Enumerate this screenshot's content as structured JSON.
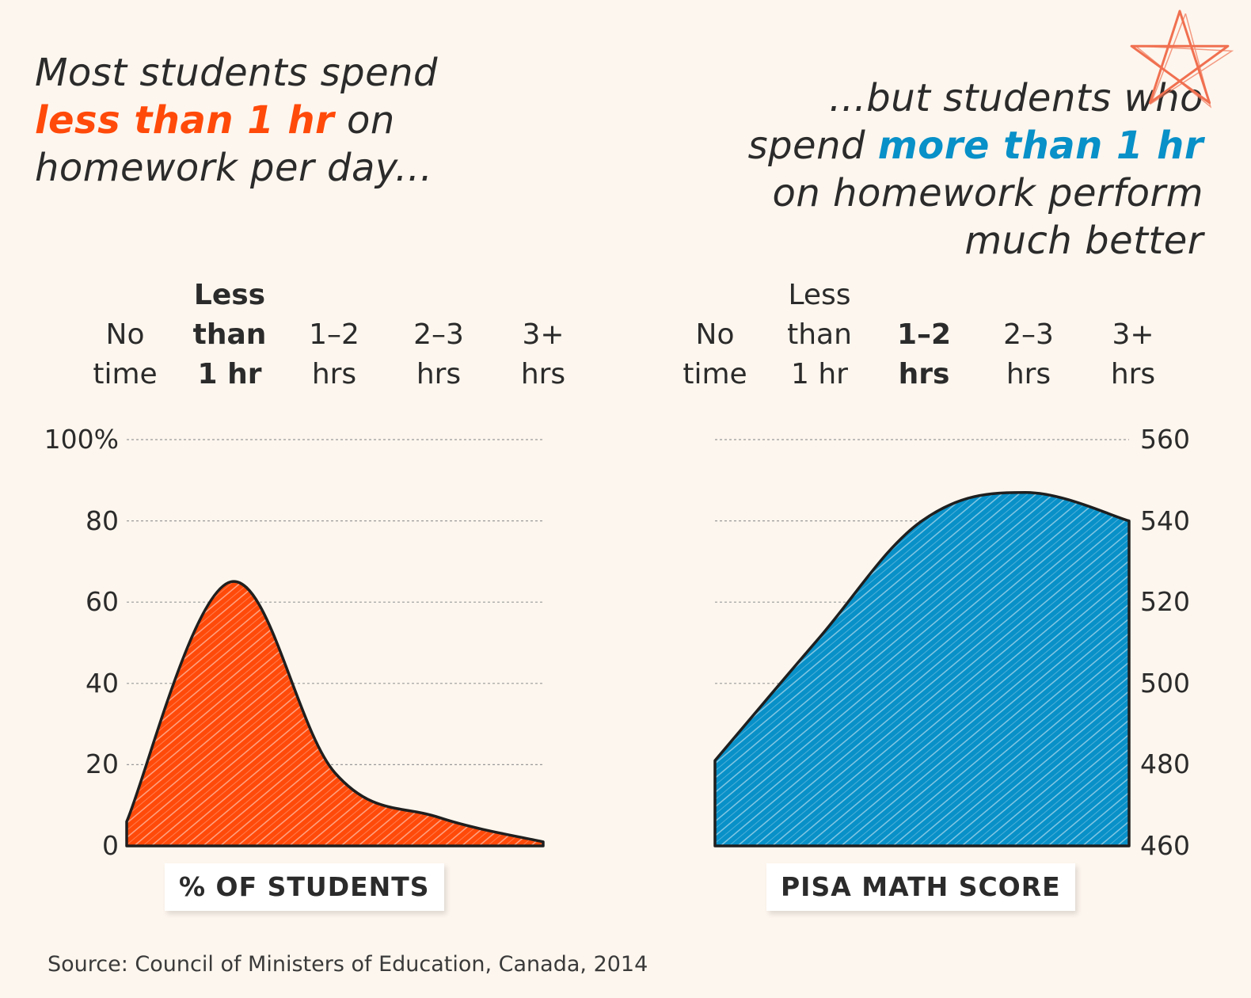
{
  "heading_left": {
    "line1": "Most students spend",
    "line2_highlight": "less than 1 hr",
    "line2_rest": " on",
    "line3": "homework per day..."
  },
  "heading_right": {
    "line1": "...but students who",
    "line2_start": "spend ",
    "line2_highlight": "more than 1 hr",
    "line3": "on homework perform",
    "line4": "much better"
  },
  "colors": {
    "left_fill": "#ff4a0a",
    "right_fill": "#0890c8",
    "left_highlight": "#ff4a0a",
    "right_highlight": "#0890c8",
    "star": "#f07050"
  },
  "decoration": {
    "star_icon": "hand-drawn-star-icon"
  },
  "source": "Source: Council of Ministers of Education, Canada, 2014",
  "chart_data": [
    {
      "type": "area",
      "categories": [
        [
          "No",
          "time"
        ],
        [
          "Less",
          "than",
          "1 hr"
        ],
        [
          "1–2",
          "hrs"
        ],
        [
          "2–3",
          "hrs"
        ],
        [
          "3+",
          "hrs"
        ]
      ],
      "highlight_category": 1,
      "values": [
        6,
        65,
        18,
        7,
        1
      ],
      "ylim": [
        0,
        100
      ],
      "yticks": [
        "100%",
        "80",
        "60",
        "40",
        "20",
        "0"
      ],
      "ytick_values": [
        100,
        80,
        60,
        40,
        20,
        0
      ],
      "axis_side": "left",
      "grid": true,
      "xlabel": "% OF STUDENTS"
    },
    {
      "type": "area",
      "categories": [
        [
          "No",
          "time"
        ],
        [
          "Less",
          "than",
          "1 hr"
        ],
        [
          "1–2",
          "hrs"
        ],
        [
          "2–3",
          "hrs"
        ],
        [
          "3+",
          "hrs"
        ]
      ],
      "highlight_category": 2,
      "values": [
        481,
        511,
        540,
        547,
        540
      ],
      "ylim": [
        460,
        560
      ],
      "yticks": [
        "560",
        "540",
        "520",
        "500",
        "480",
        "460"
      ],
      "ytick_values": [
        560,
        540,
        520,
        500,
        480,
        460
      ],
      "axis_side": "right",
      "grid": true,
      "xlabel": "PISA MATH SCORE"
    }
  ]
}
